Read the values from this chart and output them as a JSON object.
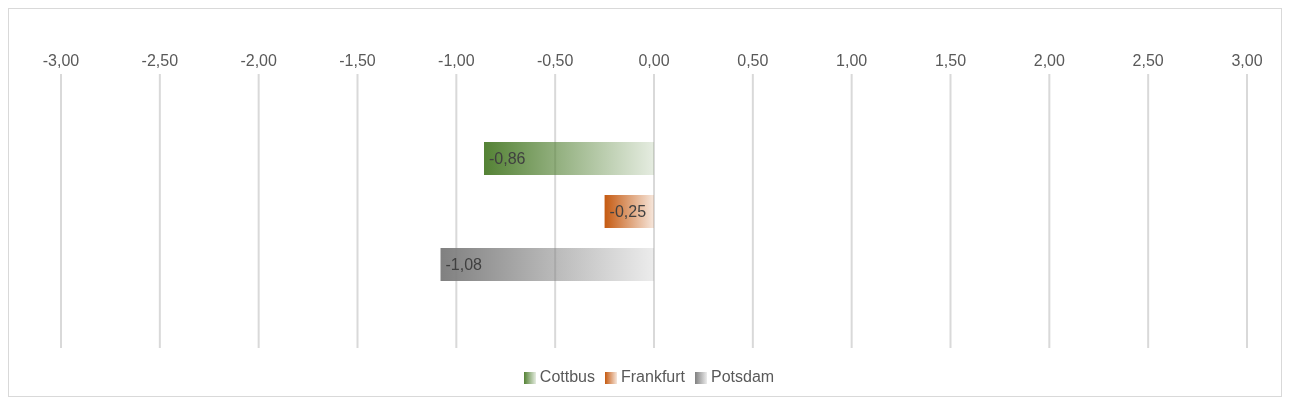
{
  "chart_data": {
    "type": "bar",
    "orientation": "horizontal",
    "categories": [
      null
    ],
    "series": [
      {
        "name": "Cottbus",
        "color": "#548235",
        "values": [
          -0.86
        ],
        "value_labels": [
          "-0,86"
        ]
      },
      {
        "name": "Frankfurt",
        "color": "#c55a11",
        "values": [
          -0.25
        ],
        "value_labels": [
          "-0,25"
        ]
      },
      {
        "name": "Potsdam",
        "color": "#808080",
        "values": [
          -1.08
        ],
        "value_labels": [
          "-1,08"
        ]
      }
    ],
    "xlim": [
      -3,
      3
    ],
    "xticks": [
      {
        "value": -3,
        "label": "-3,00"
      },
      {
        "value": -2.5,
        "label": "-2,50"
      },
      {
        "value": -2,
        "label": "-2,00"
      },
      {
        "value": -1.5,
        "label": "-1,50"
      },
      {
        "value": -1,
        "label": "-1,00"
      },
      {
        "value": -0.5,
        "label": "-0,50"
      },
      {
        "value": 0,
        "label": "0,00"
      },
      {
        "value": 0.5,
        "label": "0,50"
      },
      {
        "value": 1,
        "label": "1,00"
      },
      {
        "value": 1.5,
        "label": "1,50"
      },
      {
        "value": 2,
        "label": "2,00"
      },
      {
        "value": 2.5,
        "label": "2,50"
      },
      {
        "value": 3,
        "label": "3,00"
      }
    ],
    "tick_labels": "x",
    "grid": "x",
    "legend": "bottom"
  }
}
